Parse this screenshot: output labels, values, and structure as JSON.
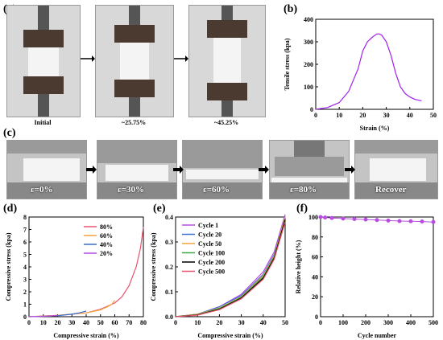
{
  "panel_labels": {
    "a": "(a)",
    "b": "(b)",
    "c": "(c)",
    "d": "(d)",
    "e": "(e)",
    "f": "(f)"
  },
  "panel_a": {
    "captions": [
      "Initial",
      "~25.75%",
      "~45.25%"
    ]
  },
  "panel_c": {
    "captions": [
      "ε=0%",
      "ε=30%",
      "ε=60%",
      "ε=80%",
      "Recover"
    ]
  },
  "colors": {
    "purple": "#a020f0",
    "red": "#e8536c",
    "orange": "#f4a23a",
    "blue": "#3b6fd6",
    "green": "#3aa84a",
    "black": "#000000",
    "magenta": "#b84de0"
  },
  "chart_data": [
    {
      "id": "b",
      "type": "line",
      "xlabel": "Strain (%)",
      "ylabel": "Tensile stress (kpa)",
      "xlim": [
        0,
        50
      ],
      "ylim": [
        0,
        400
      ],
      "xticks": [
        0,
        10,
        20,
        30,
        40,
        50
      ],
      "yticks": [
        0,
        100,
        200,
        300,
        400
      ],
      "series": [
        {
          "name": "",
          "color": "#a020f0",
          "x": [
            0,
            5,
            10,
            14,
            18,
            20,
            22,
            24,
            26,
            27,
            28,
            30,
            32,
            34,
            36,
            38,
            40,
            42,
            45
          ],
          "y": [
            0,
            8,
            30,
            80,
            180,
            260,
            300,
            320,
            335,
            335,
            330,
            300,
            240,
            160,
            100,
            70,
            55,
            45,
            38
          ]
        }
      ]
    },
    {
      "id": "d",
      "type": "line",
      "xlabel": "Compressive strain (%)",
      "ylabel": "Compressive stress (kpa)",
      "xlim": [
        0,
        80
      ],
      "ylim": [
        0,
        8
      ],
      "xticks": [
        0,
        10,
        20,
        30,
        40,
        50,
        60,
        70,
        80
      ],
      "yticks": [
        0,
        1,
        2,
        3,
        4,
        5,
        6,
        7,
        8
      ],
      "legend": "top-right",
      "series": [
        {
          "name": "80%",
          "color": "#e8536c",
          "x": [
            0,
            20,
            40,
            50,
            60,
            65,
            70,
            75,
            78,
            80
          ],
          "y": [
            0,
            0.1,
            0.3,
            0.6,
            1.1,
            1.6,
            2.5,
            4.0,
            5.5,
            7.2
          ]
        },
        {
          "name": "60%",
          "color": "#f4a23a",
          "x": [
            0,
            20,
            40,
            50,
            55,
            58,
            60
          ],
          "y": [
            0,
            0.1,
            0.3,
            0.55,
            0.8,
            1.0,
            1.3
          ]
        },
        {
          "name": "40%",
          "color": "#3b6fd6",
          "x": [
            0,
            20,
            30,
            35,
            40
          ],
          "y": [
            0,
            0.08,
            0.2,
            0.3,
            0.45
          ]
        },
        {
          "name": "20%",
          "color": "#b84de0",
          "x": [
            0,
            10,
            15,
            20
          ],
          "y": [
            0,
            0.03,
            0.06,
            0.1
          ]
        }
      ]
    },
    {
      "id": "e",
      "type": "line",
      "xlabel": "Compressive strain (%)",
      "ylabel": "Compressive stress (kpa)",
      "xlim": [
        0,
        50
      ],
      "ylim": [
        0,
        0.4
      ],
      "xticks": [
        0,
        10,
        20,
        30,
        40,
        50
      ],
      "yticks": [
        0.0,
        0.1,
        0.2,
        0.3,
        0.4
      ],
      "legend": "top-left",
      "series": [
        {
          "name": "Cycle 1",
          "color": "#b84de0",
          "x": [
            0,
            10,
            20,
            30,
            40,
            45,
            50
          ],
          "y": [
            0,
            0.01,
            0.04,
            0.09,
            0.18,
            0.26,
            0.41
          ]
        },
        {
          "name": "Cycle 20",
          "color": "#3b6fd6",
          "x": [
            0,
            10,
            20,
            30,
            40,
            45,
            50
          ],
          "y": [
            0,
            0.01,
            0.04,
            0.085,
            0.17,
            0.25,
            0.4
          ]
        },
        {
          "name": "Cycle 50",
          "color": "#f4a23a",
          "x": [
            0,
            10,
            20,
            30,
            40,
            45,
            50
          ],
          "y": [
            0,
            0.01,
            0.035,
            0.08,
            0.165,
            0.245,
            0.4
          ]
        },
        {
          "name": "Cycle 100",
          "color": "#3aa84a",
          "x": [
            0,
            10,
            20,
            30,
            40,
            45,
            50
          ],
          "y": [
            0,
            0.008,
            0.033,
            0.078,
            0.16,
            0.24,
            0.39
          ]
        },
        {
          "name": "Cycle 200",
          "color": "#000000",
          "x": [
            0,
            10,
            20,
            30,
            40,
            45,
            50
          ],
          "y": [
            0,
            0.007,
            0.03,
            0.075,
            0.155,
            0.235,
            0.39
          ]
        },
        {
          "name": "Cycle 500",
          "color": "#e8536c",
          "x": [
            0,
            10,
            20,
            30,
            40,
            45,
            50
          ],
          "y": [
            0,
            0.006,
            0.028,
            0.072,
            0.15,
            0.23,
            0.38
          ]
        }
      ]
    },
    {
      "id": "f",
      "type": "scatter",
      "xlabel": "Cycle number",
      "ylabel": "Relative height (%)",
      "xlim": [
        0,
        500
      ],
      "ylim": [
        0,
        100
      ],
      "xticks": [
        0,
        100,
        200,
        300,
        400,
        500
      ],
      "yticks": [
        0,
        20,
        40,
        60,
        80,
        100
      ],
      "series": [
        {
          "name": "",
          "color": "#b84de0",
          "x": [
            0,
            20,
            50,
            100,
            150,
            200,
            250,
            300,
            350,
            400,
            450,
            500
          ],
          "y": [
            100,
            99.5,
            99,
            98.5,
            98,
            97.5,
            97,
            96.5,
            96,
            95.8,
            95.5,
            95
          ]
        }
      ]
    }
  ]
}
